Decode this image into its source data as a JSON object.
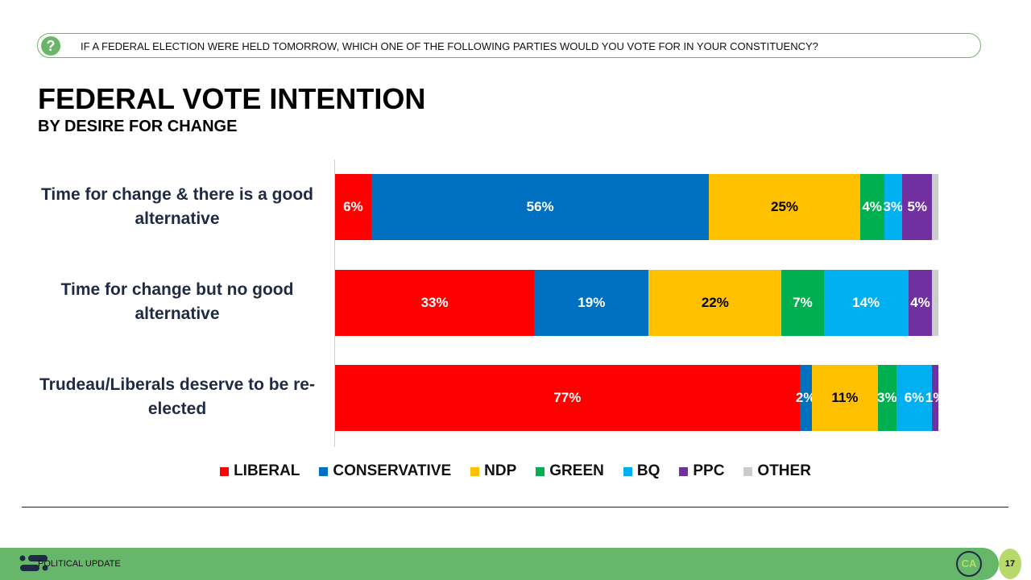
{
  "question": "IF A FEDERAL ELECTION WERE HELD TOMORROW, WHICH ONE OF THE FOLLOWING PARTIES WOULD YOU VOTE FOR IN YOUR CONSTITUENCY?",
  "footer": {
    "label": "POLITICAL UPDATE",
    "logo": "CA",
    "page": "17"
  },
  "chart_data": {
    "type": "bar",
    "orientation": "horizontal",
    "stacked": true,
    "title": "FEDERAL VOTE INTENTION",
    "subtitle": "BY DESIRE FOR CHANGE",
    "categories": [
      "Time for change & there is a good alternative",
      "Time for change but no good alternative",
      "Trudeau/Liberals deserve to be re-elected"
    ],
    "series": [
      {
        "name": "LIBERAL",
        "color": "#ff0000",
        "values": [
          6,
          33,
          77
        ],
        "labels": [
          "6%",
          "33%",
          "77%"
        ]
      },
      {
        "name": "CONSERVATIVE",
        "color": "#0070c0",
        "values": [
          56,
          19,
          2
        ],
        "labels": [
          "56%",
          "19%",
          "2%"
        ]
      },
      {
        "name": "NDP",
        "color": "#ffc000",
        "values": [
          25,
          22,
          11
        ],
        "labels": [
          "25%",
          "22%",
          "11%"
        ]
      },
      {
        "name": "GREEN",
        "color": "#00b050",
        "values": [
          4,
          7,
          3
        ],
        "labels": [
          "4%",
          "7%",
          "3%"
        ]
      },
      {
        "name": "BQ",
        "color": "#00b0f0",
        "values": [
          3,
          14,
          6
        ],
        "labels": [
          "3%",
          "14%",
          "6%"
        ]
      },
      {
        "name": "PPC",
        "color": "#7030a0",
        "values": [
          5,
          4,
          1
        ],
        "labels": [
          "5%",
          "4%",
          "1%"
        ]
      },
      {
        "name": "OTHER",
        "color": "#c9cdcc",
        "values": [
          1,
          1,
          0
        ],
        "labels": [
          "",
          "",
          ""
        ]
      }
    ],
    "xlim": [
      0,
      100
    ],
    "legend": "bottom",
    "grid": false
  }
}
